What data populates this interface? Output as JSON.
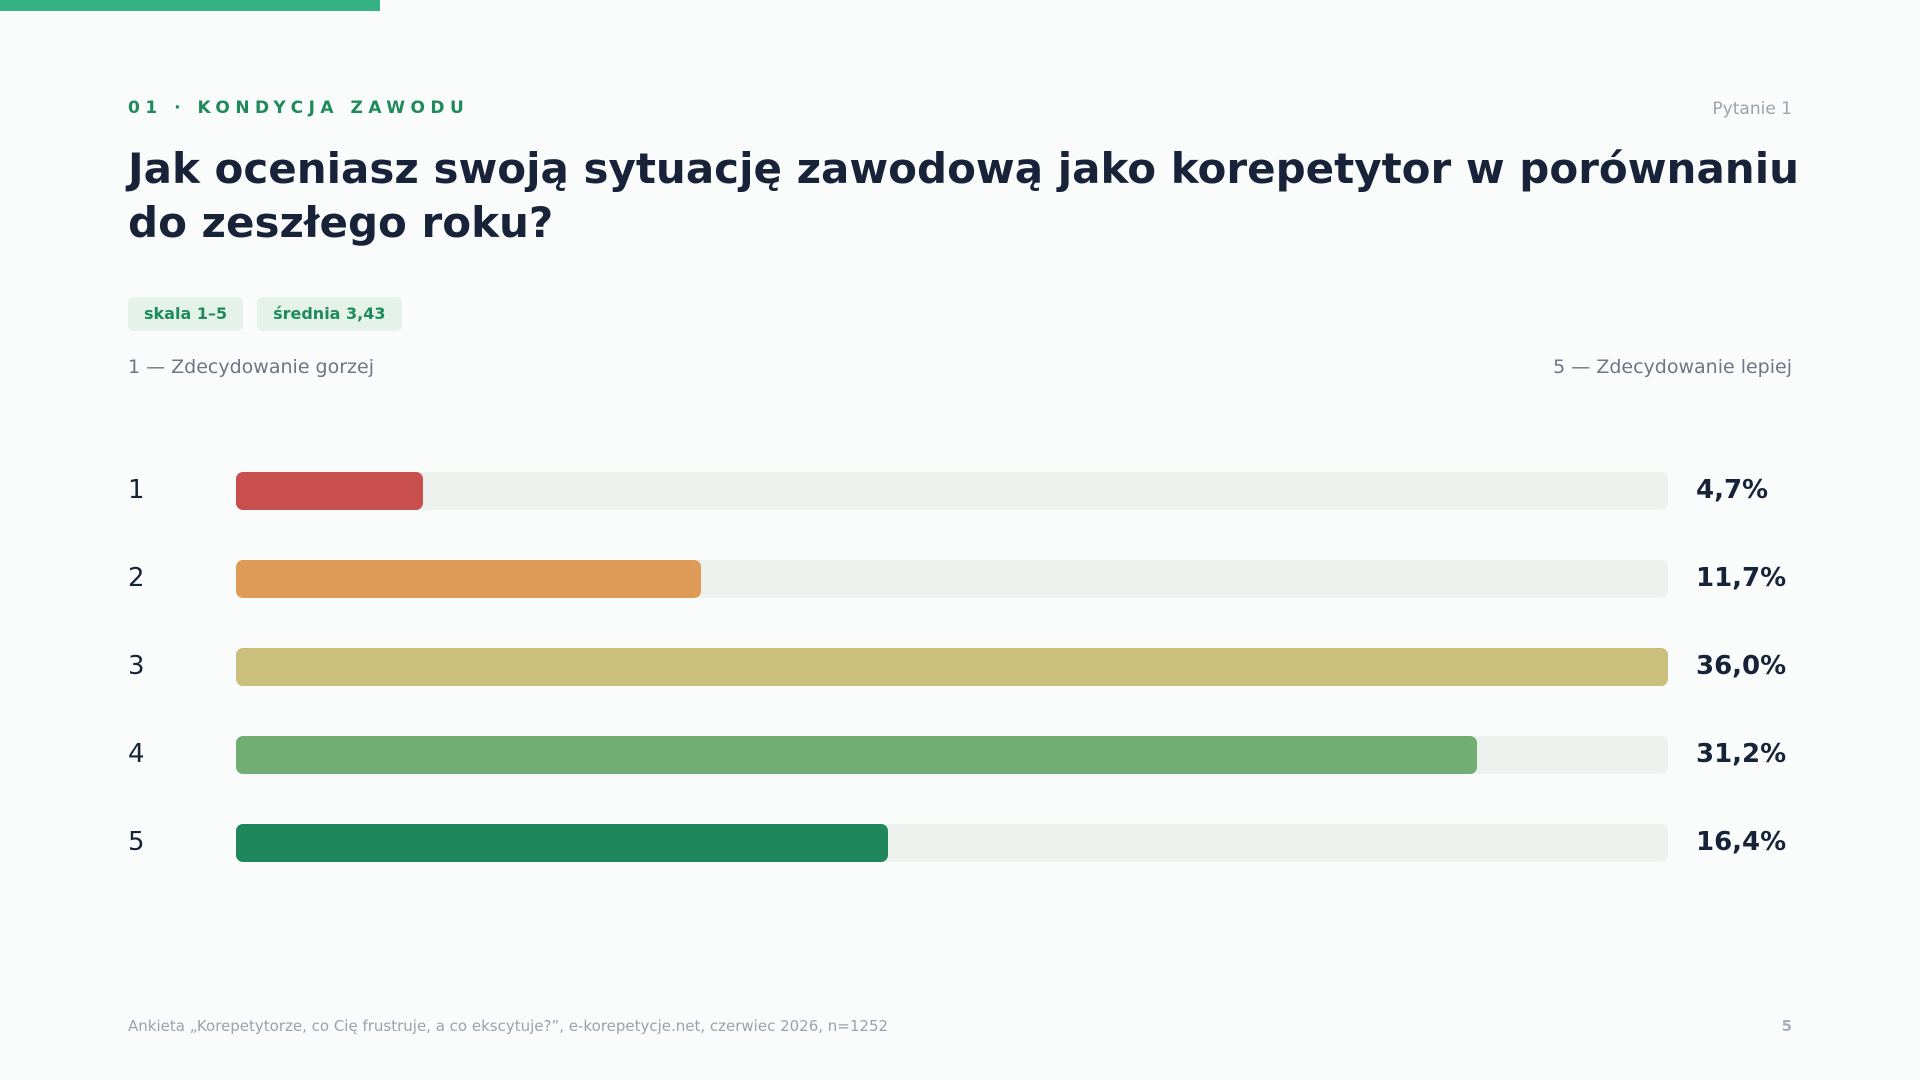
{
  "header": {
    "section_label": "01 · KONDYCJA ZAWODU",
    "question_number": "Pytanie 1",
    "title": "Jak oceniasz swoją sytuację zawodową jako korepetytor w porównaniu do zeszłego roku?"
  },
  "badges": {
    "scale": "skala 1–5",
    "mean": "średnia 3,43"
  },
  "scale_labels": {
    "left": "1 — Zdecydowanie gorzej",
    "right": "5 — Zdecydowanie lepiej"
  },
  "chart_data": {
    "type": "bar",
    "orientation": "horizontal",
    "categories": [
      "1",
      "2",
      "3",
      "4",
      "5"
    ],
    "values": [
      4.7,
      11.7,
      36.0,
      31.2,
      16.4
    ],
    "value_labels": [
      "4,7%",
      "11,7%",
      "36,0%",
      "31,2%",
      "16,4%"
    ],
    "max_value": 36.0,
    "colors": [
      "#c94f4f",
      "#de9a57",
      "#cbc07b",
      "#70ae74",
      "#1f875b"
    ]
  },
  "footer": {
    "source": "Ankieta „Korepetytorze, co Cię frustruje, a co ekscytuje?”, e-korepetycje.net, czerwiec 2026, n=1252",
    "page_number": "5"
  }
}
